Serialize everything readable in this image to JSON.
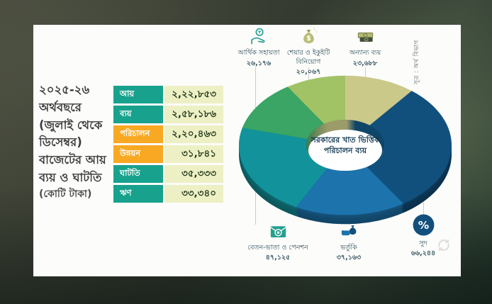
{
  "intro": {
    "lines": [
      "২০২৫-২৬",
      "অর্থবছরে",
      "(জুলাই থেকে",
      "ডিসেম্বর)",
      "বাজেটের আয়",
      "ব্যয় ও ঘাটতি",
      "(কোটি টাকা)"
    ]
  },
  "source": "সূত্র : অর্থ বিভাগ",
  "colors": {
    "table_label_teal": "#18a28d",
    "table_label_orange": "#f8a822",
    "table_value_bg": "#edf0c4",
    "accent_navy": "#11507d",
    "accent_blue": "#1d74ad",
    "accent_teal": "#12939b",
    "accent_green": "#3aa564",
    "accent_light_green": "#a2c266",
    "accent_khaki": "#cbc98a"
  },
  "legend": {
    "top": [
      {
        "icon": "hand-coin-icon",
        "segment": 4
      },
      {
        "icon": "money-bag-icon",
        "segment": 5
      },
      {
        "icon": "banknotes-icon",
        "segment": 0
      }
    ],
    "bottom": [
      {
        "icon": "salary-envelope-icon",
        "segment": 3
      },
      {
        "icon": "subsidy-hand-icon",
        "segment": 2
      },
      {
        "icon": "percent-icon",
        "segment": 1
      }
    ]
  },
  "chart_data": [
    {
      "type": "pie",
      "subtype": "donut-3d",
      "title": "সরকারের খাত ভিত্তিক পরিচালন ব্যয়",
      "unit": "কোটি টাকা",
      "start_angle_deg": 0,
      "clockwise": true,
      "total": 220463,
      "segments": [
        {
          "label": "অন্যান্য ব্যয়",
          "value": 23688,
          "display": "২৩,৬৮৮",
          "color": "#cbc98a"
        },
        {
          "label": "সুদ",
          "value": 66244,
          "display": "৬৬,২৪৪",
          "color": "#11507d"
        },
        {
          "label": "ভর্তুকি",
          "value": 37163,
          "display": "৩৭,১৬৩",
          "color": "#1d74ad"
        },
        {
          "label": "বেতন-ভাতা ও পেনশন",
          "value": 47125,
          "display": "৪৭,১২৫",
          "color": "#12939b"
        },
        {
          "label": "আর্থিক সহায়তা",
          "value": 26176,
          "display": "২৬,১৭৬",
          "color": "#3aa564"
        },
        {
          "label": "শেয়ার ও ইকুইটি বিনিয়োগ",
          "value": 20067,
          "display": "২০,০৬৭",
          "color": "#a2c266"
        }
      ]
    },
    {
      "type": "table",
      "unit": "কোটি টাকা",
      "rows": [
        {
          "label": "আয়",
          "value": 222853,
          "display": "২,২২,৮৫৩",
          "color": "teal"
        },
        {
          "label": "ব্যয়",
          "value": 258186,
          "display": "২,৫৮,১৮৬",
          "color": "teal"
        },
        {
          "label": "পরিচালন",
          "value": 220463,
          "display": "২,২০,৪৬৩",
          "color": "orange"
        },
        {
          "label": "উন্নয়ন",
          "value": 31841,
          "display": "৩১,৮৪১",
          "color": "orange"
        },
        {
          "label": "ঘাটতি",
          "value": 35333,
          "display": "৩৫,৩৩৩",
          "color": "teal"
        },
        {
          "label": "ঋণ",
          "value": 33340,
          "display": "৩৩,৩৪০",
          "color": "teal"
        }
      ]
    }
  ]
}
